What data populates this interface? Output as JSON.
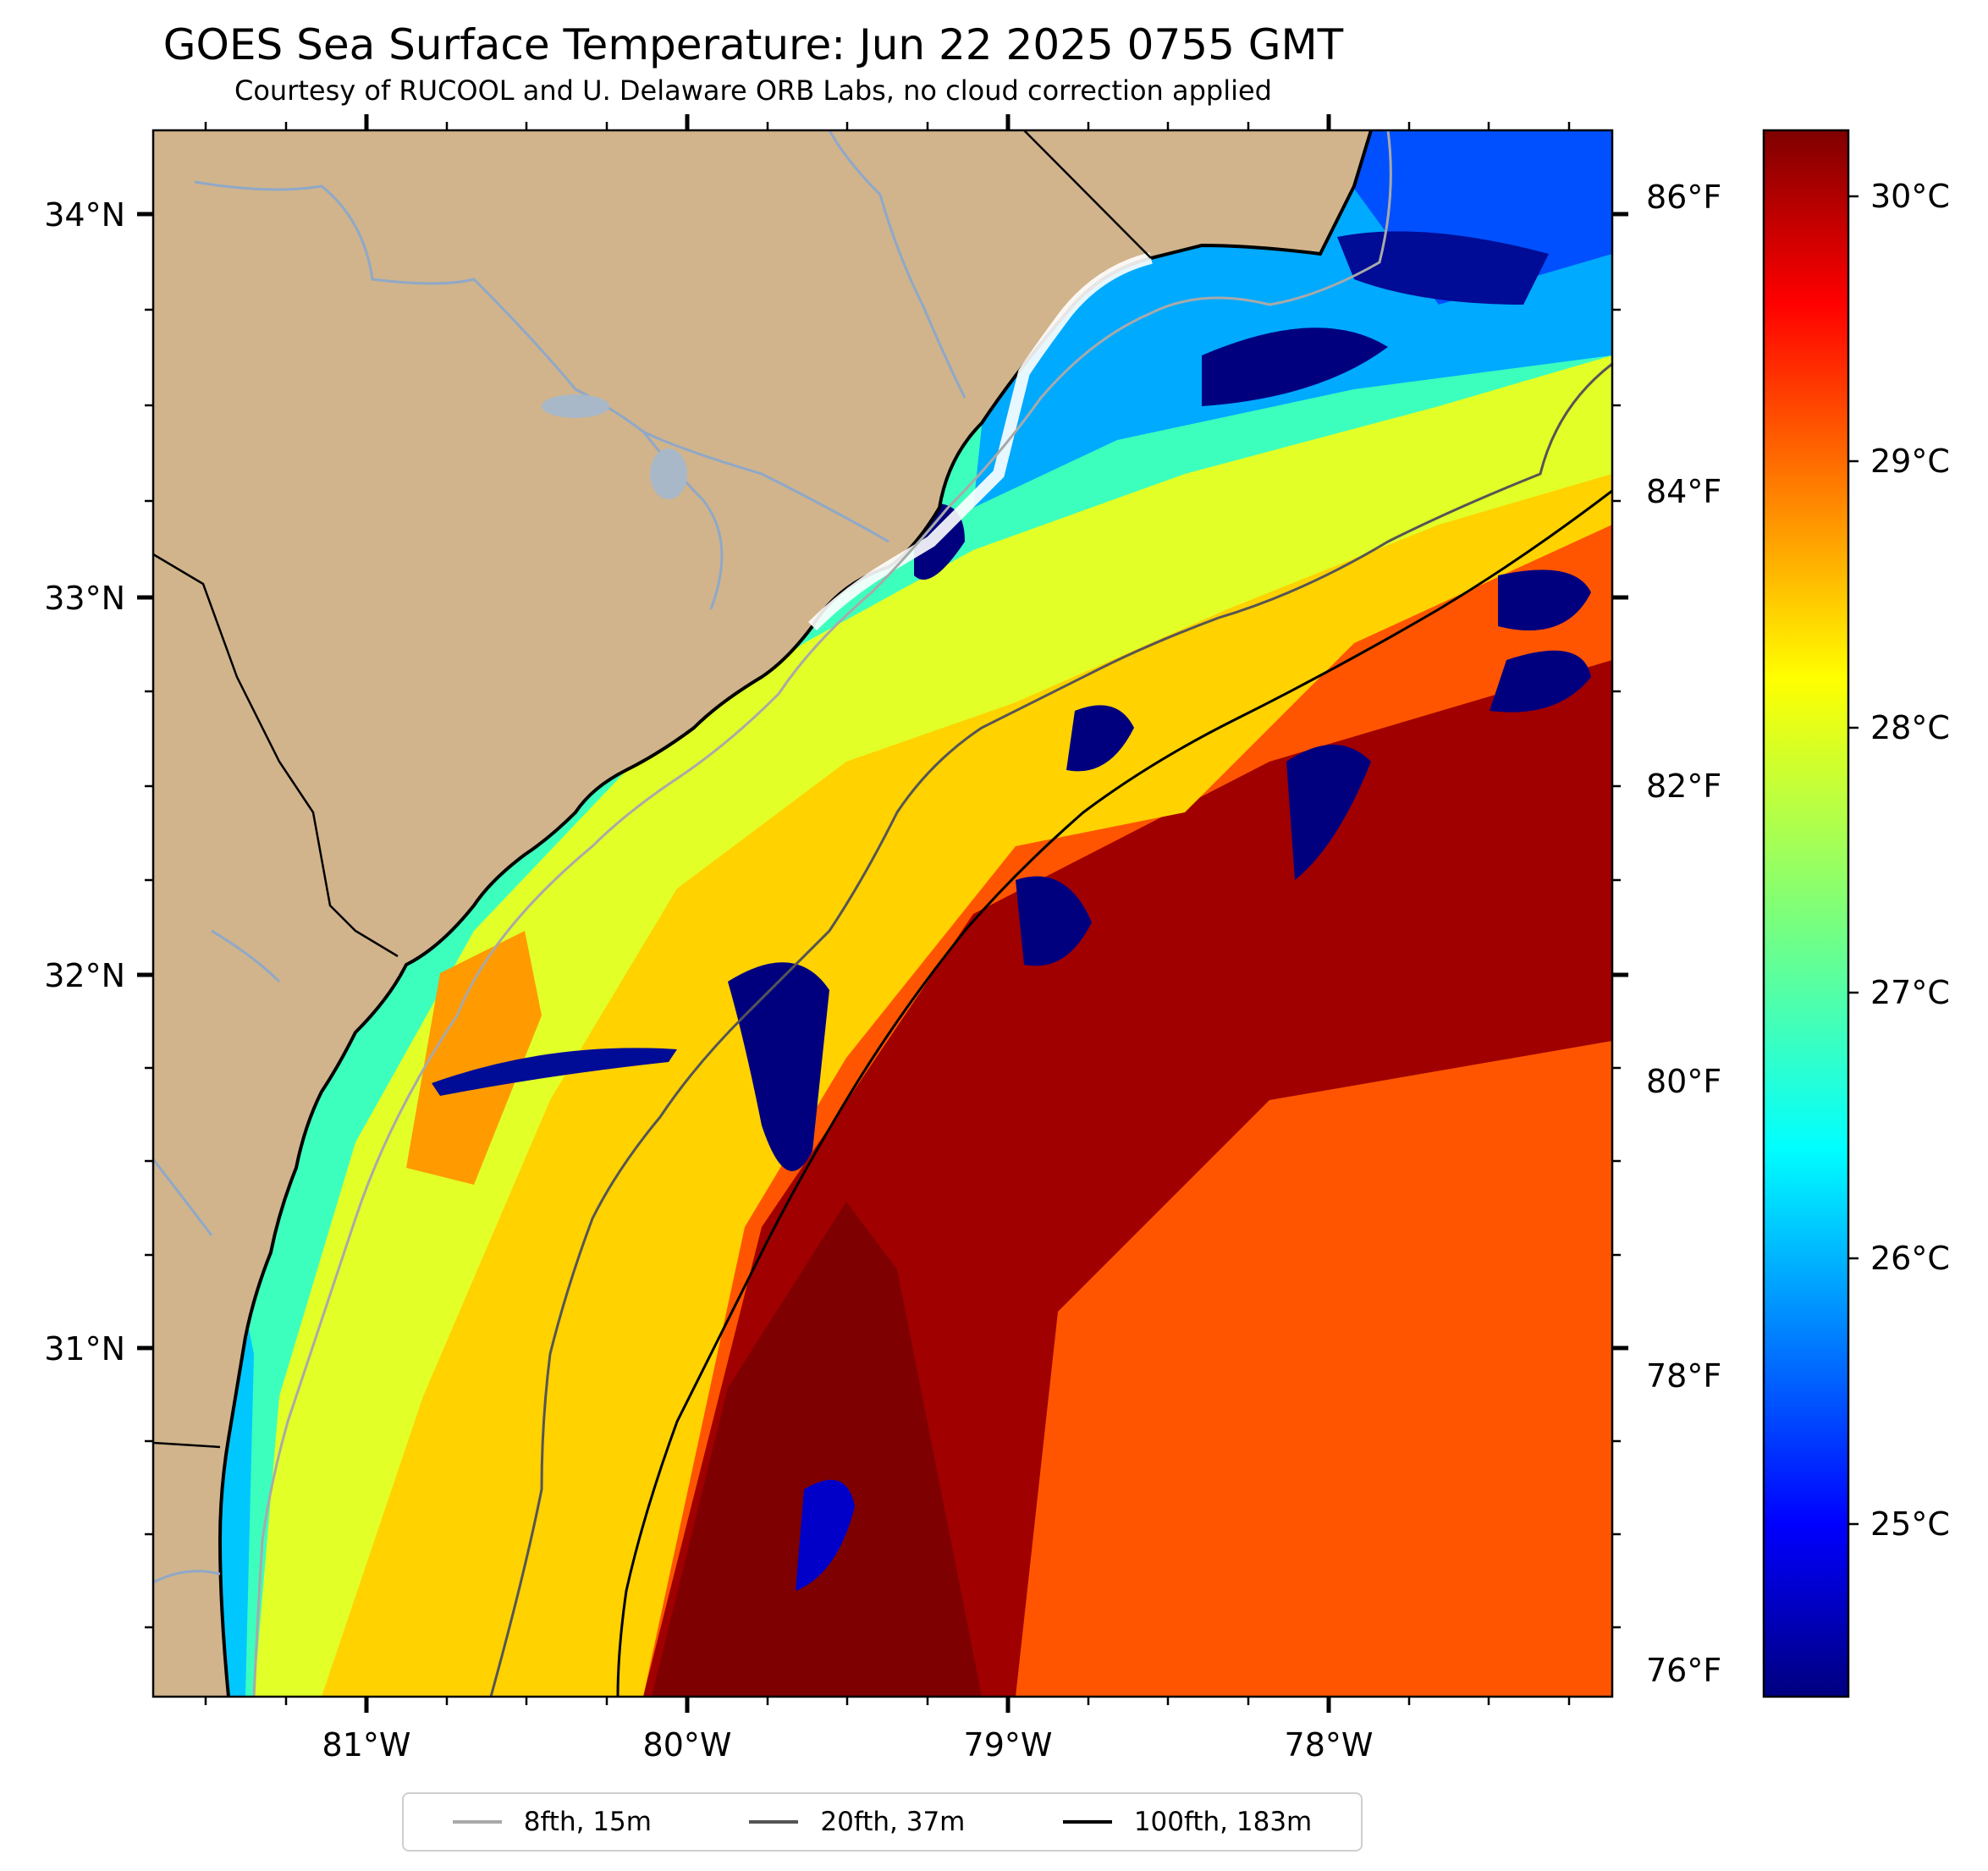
{
  "title": "GOES Sea Surface Temperature: Jun 22 2025 0755 GMT",
  "subtitle": "Courtesy of RUCOOL and U. Delaware ORB Labs, no cloud correction applied",
  "map": {
    "lon_labels": [
      "81°W",
      "80°W",
      "79°W",
      "78°W"
    ],
    "lat_labels": [
      "34°N",
      "33°N",
      "32°N",
      "31°N"
    ],
    "fahrenheit_labels": [
      "86°F",
      "84°F",
      "82°F",
      "80°F",
      "78°F",
      "76°F"
    ],
    "land_color": "#d1b48c",
    "coastline_color": "#000000",
    "river_color": "#8fa8c8"
  },
  "colorbar": {
    "colormap": "jet",
    "celsius_labels": [
      "30°C",
      "29°C",
      "28°C",
      "27°C",
      "26°C",
      "25°C"
    ]
  },
  "legend": [
    {
      "label": "8fth, 15m",
      "color": "#a9a9a9"
    },
    {
      "label": "20fth, 37m",
      "color": "#555555"
    },
    {
      "label": "100fth, 183m",
      "color": "#000000"
    }
  ]
}
